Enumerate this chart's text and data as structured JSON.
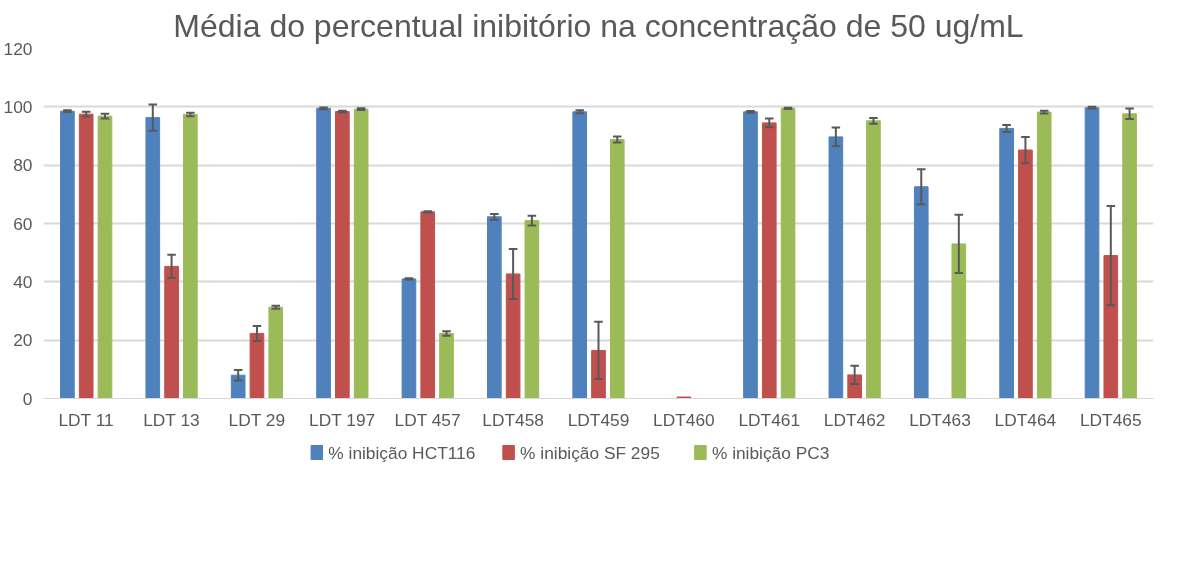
{
  "chart_data": {
    "type": "bar",
    "title": "Média do percentual inibitório na concentração de 50 ug/mL",
    "categories": [
      "LDT 11",
      "LDT 13",
      "LDT 29",
      "LDT 197",
      "LDT 457",
      "LDT458",
      "LDT459",
      "LDT460",
      "LDT461",
      "LDT462",
      "LDT463",
      "LDT464",
      "LDT465"
    ],
    "series": [
      {
        "name": "% inibição HCT116",
        "color": "#4f81bd",
        "values": [
          98.5,
          96.3,
          8,
          99.5,
          41,
          62.3,
          98.3,
          0,
          98.3,
          89.7,
          72.6,
          92.6,
          99.7
        ],
        "errors": [
          0.3,
          4.5,
          1.8,
          0.3,
          0.2,
          1,
          0.5,
          null,
          0.3,
          3.2,
          6,
          1.2,
          0.3
        ]
      },
      {
        "name": "% inibição SF 295",
        "color": "#c0504d",
        "values": [
          97.5,
          45.3,
          22.3,
          98.4,
          64,
          42.7,
          16.5,
          0.5,
          94.5,
          8.1,
          null,
          85.2,
          49
        ],
        "errors": [
          0.8,
          4,
          2.6,
          0.3,
          0.2,
          8.6,
          9.8,
          null,
          1.5,
          3.1,
          null,
          4.5,
          17
        ]
      },
      {
        "name": "% inibição PC3",
        "color": "#9bbb59",
        "values": [
          96.8,
          97.4,
          31.3,
          99.2,
          22.3,
          61,
          88.8,
          0,
          99.5,
          95.2,
          53,
          98.2,
          97.6
        ],
        "errors": [
          0.8,
          0.6,
          0.5,
          0.3,
          0.8,
          1.7,
          1,
          null,
          0.2,
          1,
          10,
          0.5,
          1.8
        ]
      }
    ],
    "ylim": [
      0,
      120
    ],
    "yticks": [
      0,
      20,
      40,
      60,
      80,
      100,
      120
    ],
    "grid": "y",
    "legend": "bottom"
  }
}
